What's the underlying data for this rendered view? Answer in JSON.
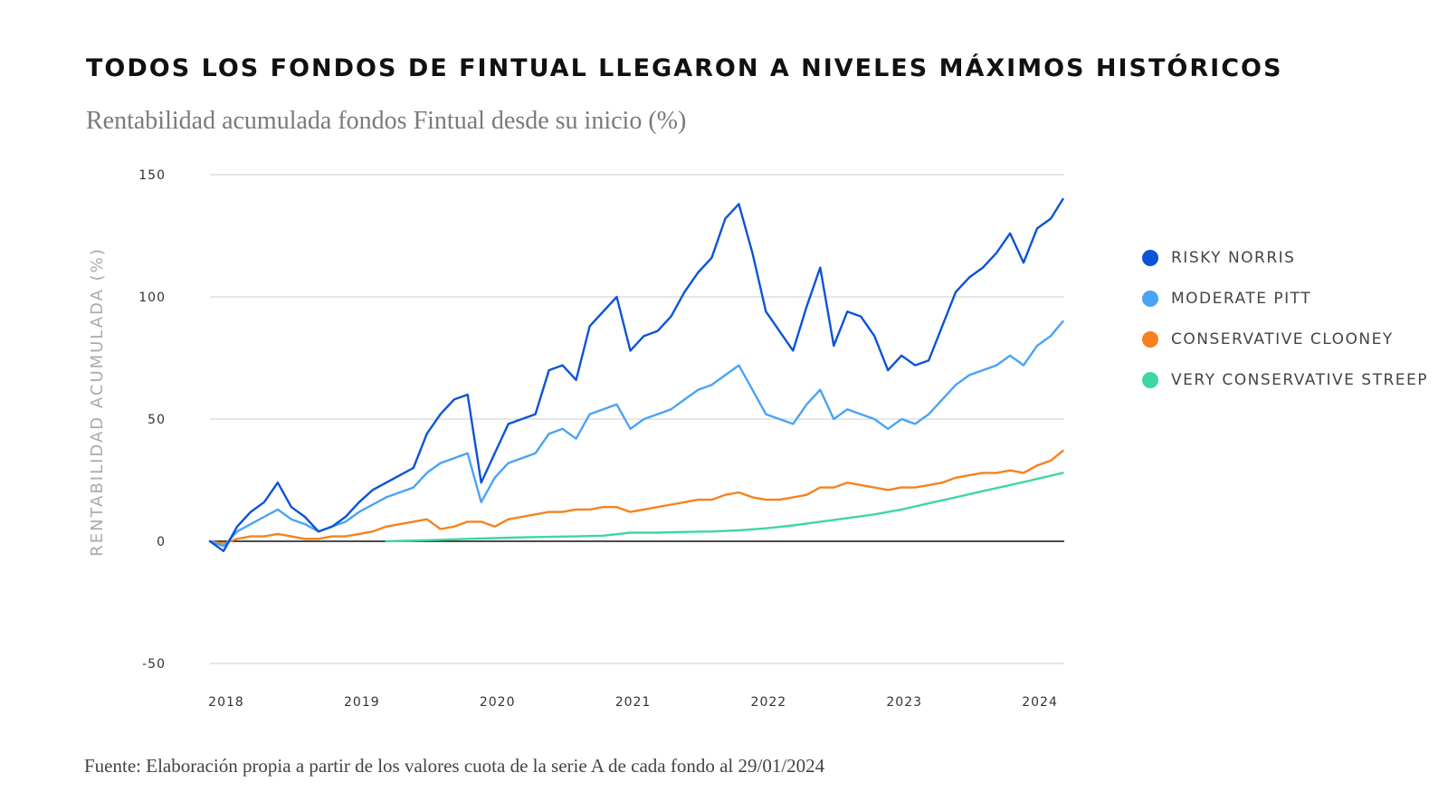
{
  "header": {
    "title": "TODOS LOS FONDOS DE FINTUAL LLEGARON A NIVELES MÁXIMOS HISTÓRICOS",
    "subtitle": "Rentabilidad acumulada fondos Fintual desde su inicio (%)"
  },
  "footer": {
    "source": "Fuente: Elaboración propia a partir de los valores cuota de la serie A de cada fondo al 29/01/2024"
  },
  "chart_data": {
    "type": "line",
    "title": "TODOS LOS FONDOS DE FINTUAL LLEGARON A NIVELES MÁXIMOS HISTÓRICOS",
    "subtitle": "Rentabilidad acumulada fondos Fintual desde su inicio (%)",
    "xlabel": "",
    "ylabel": "RENTABILIDAD ACUMULADA (%)",
    "xlim": [
      2018.0,
      2024.3
    ],
    "ylim": [
      -50,
      150
    ],
    "x_ticks": [
      "2018",
      "2019",
      "2020",
      "2021",
      "2022",
      "2023",
      "2024"
    ],
    "y_ticks": [
      "-50",
      "0",
      "50",
      "100",
      "150"
    ],
    "grid": true,
    "legend_position": "right",
    "series": [
      {
        "name": "RISKY NORRIS",
        "color": "#0b54d6",
        "x": [
          2018.0,
          2018.1,
          2018.2,
          2018.3,
          2018.4,
          2018.5,
          2018.6,
          2018.7,
          2018.8,
          2018.9,
          2019.0,
          2019.1,
          2019.2,
          2019.3,
          2019.4,
          2019.5,
          2019.6,
          2019.7,
          2019.8,
          2019.9,
          2020.0,
          2020.1,
          2020.2,
          2020.3,
          2020.4,
          2020.5,
          2020.6,
          2020.7,
          2020.8,
          2020.9,
          2021.0,
          2021.1,
          2021.2,
          2021.3,
          2021.4,
          2021.5,
          2021.6,
          2021.7,
          2021.8,
          2021.9,
          2022.0,
          2022.1,
          2022.2,
          2022.3,
          2022.4,
          2022.5,
          2022.6,
          2022.7,
          2022.8,
          2022.9,
          2023.0,
          2023.1,
          2023.2,
          2023.3,
          2023.4,
          2023.5,
          2023.6,
          2023.7,
          2023.8,
          2023.9,
          2024.0,
          2024.1,
          2024.2,
          2024.29
        ],
        "values": [
          0,
          -4,
          6,
          12,
          16,
          24,
          14,
          10,
          4,
          6,
          10,
          16,
          21,
          24,
          27,
          30,
          44,
          52,
          58,
          60,
          24,
          36,
          48,
          50,
          52,
          70,
          72,
          66,
          88,
          94,
          100,
          78,
          84,
          86,
          92,
          102,
          110,
          116,
          132,
          138,
          118,
          94,
          86,
          78,
          96,
          112,
          80,
          94,
          92,
          84,
          70,
          76,
          72,
          74,
          88,
          102,
          108,
          112,
          118,
          126,
          114,
          128,
          132,
          140
        ]
      },
      {
        "name": "MODERATE PITT",
        "color": "#4aa3f5",
        "x": [
          2018.0,
          2018.1,
          2018.2,
          2018.3,
          2018.4,
          2018.5,
          2018.6,
          2018.7,
          2018.8,
          2018.9,
          2019.0,
          2019.1,
          2019.2,
          2019.3,
          2019.4,
          2019.5,
          2019.6,
          2019.7,
          2019.8,
          2019.9,
          2020.0,
          2020.1,
          2020.2,
          2020.3,
          2020.4,
          2020.5,
          2020.6,
          2020.7,
          2020.8,
          2020.9,
          2021.0,
          2021.1,
          2021.2,
          2021.3,
          2021.4,
          2021.5,
          2021.6,
          2021.7,
          2021.8,
          2021.9,
          2022.0,
          2022.1,
          2022.2,
          2022.3,
          2022.4,
          2022.5,
          2022.6,
          2022.7,
          2022.8,
          2022.9,
          2023.0,
          2023.1,
          2023.2,
          2023.3,
          2023.4,
          2023.5,
          2023.6,
          2023.7,
          2023.8,
          2023.9,
          2024.0,
          2024.1,
          2024.2,
          2024.29
        ],
        "values": [
          0,
          -2,
          4,
          7,
          10,
          13,
          9,
          7,
          4,
          6,
          8,
          12,
          15,
          18,
          20,
          22,
          28,
          32,
          34,
          36,
          16,
          26,
          32,
          34,
          36,
          44,
          46,
          42,
          52,
          54,
          56,
          46,
          50,
          52,
          54,
          58,
          62,
          64,
          68,
          72,
          62,
          52,
          50,
          48,
          56,
          62,
          50,
          54,
          52,
          50,
          46,
          50,
          48,
          52,
          58,
          64,
          68,
          70,
          72,
          76,
          72,
          80,
          84,
          90
        ]
      },
      {
        "name": "CONSERVATIVE CLOONEY",
        "color": "#f5821f",
        "x": [
          2018.0,
          2018.1,
          2018.2,
          2018.3,
          2018.4,
          2018.5,
          2018.6,
          2018.7,
          2018.8,
          2018.9,
          2019.0,
          2019.1,
          2019.2,
          2019.3,
          2019.4,
          2019.5,
          2019.6,
          2019.7,
          2019.8,
          2019.9,
          2020.0,
          2020.1,
          2020.2,
          2020.3,
          2020.4,
          2020.5,
          2020.6,
          2020.7,
          2020.8,
          2020.9,
          2021.0,
          2021.1,
          2021.2,
          2021.3,
          2021.4,
          2021.5,
          2021.6,
          2021.7,
          2021.8,
          2021.9,
          2022.0,
          2022.1,
          2022.2,
          2022.3,
          2022.4,
          2022.5,
          2022.6,
          2022.7,
          2022.8,
          2022.9,
          2023.0,
          2023.1,
          2023.2,
          2023.3,
          2023.4,
          2023.5,
          2023.6,
          2023.7,
          2023.8,
          2023.9,
          2024.0,
          2024.1,
          2024.2,
          2024.29
        ],
        "values": [
          0,
          -1,
          1,
          2,
          2,
          3,
          2,
          1,
          1,
          2,
          2,
          3,
          4,
          6,
          7,
          8,
          9,
          5,
          6,
          8,
          8,
          6,
          9,
          10,
          11,
          12,
          12,
          13,
          13,
          14,
          14,
          12,
          13,
          14,
          15,
          16,
          17,
          17,
          19,
          20,
          18,
          17,
          17,
          18,
          19,
          22,
          22,
          24,
          23,
          22,
          21,
          22,
          22,
          23,
          24,
          26,
          27,
          28,
          28,
          29,
          28,
          31,
          33,
          37
        ]
      },
      {
        "name": "VERY CONSERVATIVE STREEP",
        "color": "#3fd6a2",
        "x": [
          2019.3,
          2019.5,
          2019.7,
          2019.9,
          2020.1,
          2020.3,
          2020.5,
          2020.7,
          2020.9,
          2021.1,
          2021.3,
          2021.5,
          2021.7,
          2021.9,
          2022.1,
          2022.3,
          2022.5,
          2022.7,
          2022.9,
          2023.1,
          2023.3,
          2023.5,
          2023.7,
          2023.9,
          2024.1,
          2024.29
        ],
        "values": [
          0,
          0.3,
          0.6,
          1,
          1.3,
          1.6,
          1.8,
          2,
          2.3,
          3.5,
          3.5,
          3.8,
          4,
          4.5,
          5.3,
          6.5,
          8,
          9.5,
          11,
          13,
          15.5,
          18,
          20.5,
          23,
          25.5,
          28
        ]
      }
    ]
  }
}
